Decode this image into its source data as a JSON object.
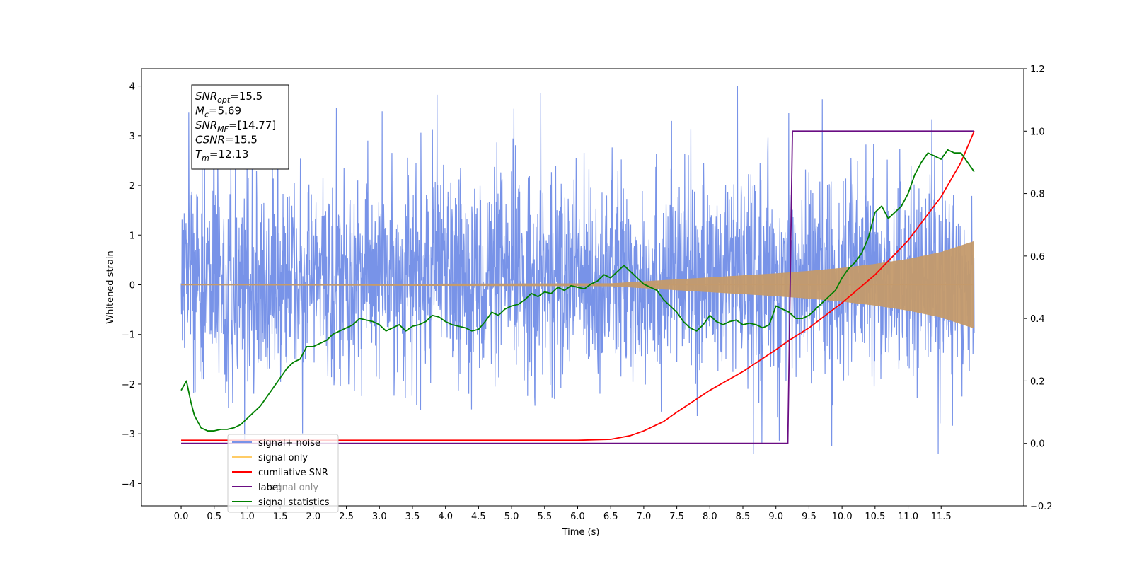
{
  "chart_data": {
    "type": "line",
    "xlabel": "Time (s)",
    "ylabel": "Whitened strain",
    "xlim": [
      -0.6,
      12.75
    ],
    "ylim": [
      -4.45,
      4.35
    ],
    "y2lim": [
      -0.2,
      1.2
    ],
    "x_ticks": [
      0.0,
      0.5,
      1.0,
      1.5,
      2.0,
      2.5,
      3.0,
      3.5,
      4.0,
      4.5,
      5.0,
      5.5,
      6.0,
      6.5,
      7.0,
      7.5,
      8.0,
      8.5,
      9.0,
      9.5,
      10.0,
      10.5,
      11.0,
      11.5
    ],
    "x_tick_labels": [
      "0.0",
      "0.5",
      "1.0",
      "1.5",
      "2.0",
      "2.5",
      "3.0",
      "3.5",
      "4.0",
      "4.5",
      "5.0",
      "5.5",
      "6.0",
      "6.5",
      "7.0",
      "7.5",
      "8.0",
      "8.5",
      "9.0",
      "9.5",
      "10.0",
      "10.5",
      "11.0",
      "11.5"
    ],
    "y_ticks": [
      -4,
      -3,
      -2,
      -1,
      0,
      1,
      2,
      3,
      4
    ],
    "y_tick_labels": [
      "−4",
      "−3",
      "−2",
      "−1",
      "0",
      "1",
      "2",
      "3",
      "4"
    ],
    "y2_ticks": [
      -0.2,
      0.0,
      0.2,
      0.4,
      0.6,
      0.8,
      1.0,
      1.2
    ],
    "y2_tick_labels": [
      "−0.2",
      "0.0",
      "0.2",
      "0.4",
      "0.6",
      "0.8",
      "1.0",
      "1.2"
    ],
    "grid": false,
    "legend_position": "bottom-left",
    "annotation_lines": [
      {
        "name": "SNR",
        "sub": "opt",
        "value": "=15.5"
      },
      {
        "name": "M",
        "sub": "c",
        "value": "=5.69"
      },
      {
        "name": "SNR",
        "sub": "MF",
        "value": "=[14.77]"
      },
      {
        "name": "CSNR",
        "sub": "",
        "value": "=15.5"
      },
      {
        "name": "T",
        "sub": "m",
        "value": "=12.13"
      }
    ],
    "noise_series": {
      "name": "signal+ noise",
      "color": "#7893e8",
      "x_start": 0.0,
      "x_end": 12.0,
      "approx_range": [
        -3.4,
        4.0
      ]
    },
    "series": [
      {
        "name": "signal only",
        "color": "#c49a6c",
        "axis": "left",
        "kind": "chirp_envelope",
        "x": [
          0.0,
          6.5,
          7.0,
          7.5,
          8.0,
          8.5,
          9.0,
          9.5,
          10.0,
          10.5,
          11.0,
          11.5,
          12.0
        ],
        "envelope": [
          0.01,
          0.03,
          0.07,
          0.11,
          0.15,
          0.19,
          0.23,
          0.28,
          0.34,
          0.42,
          0.52,
          0.66,
          0.88
        ]
      },
      {
        "name": "cumilative SNR",
        "color": "#ff0000",
        "axis": "right",
        "x": [
          0.0,
          6.0,
          6.5,
          6.8,
          7.0,
          7.3,
          7.5,
          8.0,
          8.5,
          9.0,
          9.2,
          9.5,
          10.0,
          10.5,
          11.0,
          11.5,
          11.8,
          12.0
        ],
        "y": [
          0.01,
          0.01,
          0.013,
          0.025,
          0.04,
          0.07,
          0.1,
          0.17,
          0.23,
          0.3,
          0.33,
          0.37,
          0.45,
          0.54,
          0.65,
          0.79,
          0.9,
          1.0
        ]
      },
      {
        "name": "label",
        "color": "#6a0d83",
        "axis": "right",
        "x": [
          0.0,
          9.18,
          9.25,
          12.0
        ],
        "y": [
          0.0,
          0.0,
          1.0,
          1.0
        ]
      },
      {
        "name": "signal statistics",
        "color": "#008000",
        "axis": "right",
        "x": [
          0.0,
          0.08,
          0.15,
          0.2,
          0.3,
          0.4,
          0.5,
          0.6,
          0.7,
          0.8,
          0.9,
          1.0,
          1.1,
          1.2,
          1.3,
          1.4,
          1.5,
          1.6,
          1.7,
          1.8,
          1.9,
          2.0,
          2.1,
          2.2,
          2.3,
          2.4,
          2.5,
          2.6,
          2.7,
          2.8,
          2.9,
          3.0,
          3.1,
          3.2,
          3.3,
          3.4,
          3.5,
          3.6,
          3.7,
          3.8,
          3.9,
          4.0,
          4.1,
          4.2,
          4.3,
          4.4,
          4.5,
          4.6,
          4.7,
          4.8,
          4.9,
          5.0,
          5.1,
          5.2,
          5.3,
          5.4,
          5.5,
          5.6,
          5.7,
          5.8,
          5.9,
          6.0,
          6.1,
          6.2,
          6.3,
          6.4,
          6.5,
          6.6,
          6.7,
          6.8,
          6.9,
          7.0,
          7.1,
          7.2,
          7.3,
          7.4,
          7.5,
          7.6,
          7.7,
          7.8,
          7.9,
          8.0,
          8.1,
          8.2,
          8.3,
          8.4,
          8.5,
          8.6,
          8.7,
          8.8,
          8.9,
          9.0,
          9.1,
          9.2,
          9.3,
          9.4,
          9.5,
          9.6,
          9.7,
          9.8,
          9.9,
          10.0,
          10.1,
          10.2,
          10.3,
          10.4,
          10.5,
          10.6,
          10.7,
          10.8,
          10.9,
          11.0,
          11.1,
          11.2,
          11.3,
          11.4,
          11.5,
          11.6,
          11.7,
          11.8,
          11.9,
          12.0
        ],
        "y": [
          0.17,
          0.2,
          0.13,
          0.09,
          0.05,
          0.04,
          0.04,
          0.045,
          0.045,
          0.05,
          0.06,
          0.08,
          0.1,
          0.12,
          0.15,
          0.18,
          0.21,
          0.24,
          0.26,
          0.27,
          0.31,
          0.31,
          0.32,
          0.33,
          0.35,
          0.36,
          0.37,
          0.38,
          0.4,
          0.395,
          0.39,
          0.38,
          0.36,
          0.37,
          0.38,
          0.36,
          0.375,
          0.38,
          0.39,
          0.41,
          0.405,
          0.39,
          0.38,
          0.375,
          0.37,
          0.36,
          0.365,
          0.39,
          0.42,
          0.41,
          0.43,
          0.44,
          0.445,
          0.46,
          0.48,
          0.47,
          0.485,
          0.48,
          0.5,
          0.49,
          0.505,
          0.5,
          0.495,
          0.51,
          0.52,
          0.54,
          0.53,
          0.55,
          0.57,
          0.55,
          0.53,
          0.51,
          0.5,
          0.49,
          0.46,
          0.44,
          0.42,
          0.39,
          0.37,
          0.36,
          0.38,
          0.41,
          0.39,
          0.38,
          0.39,
          0.395,
          0.38,
          0.385,
          0.38,
          0.37,
          0.38,
          0.44,
          0.43,
          0.42,
          0.4,
          0.4,
          0.41,
          0.43,
          0.45,
          0.47,
          0.49,
          0.53,
          0.56,
          0.58,
          0.61,
          0.66,
          0.74,
          0.76,
          0.72,
          0.74,
          0.76,
          0.8,
          0.86,
          0.9,
          0.93,
          0.92,
          0.91,
          0.94,
          0.93,
          0.93,
          0.9,
          0.87
        ]
      }
    ],
    "legend_entries": [
      {
        "name": "signal+ noise",
        "color": "#7893e8"
      },
      {
        "name": "signal only",
        "color": "#ffcc66"
      },
      {
        "name": "cumilative SNR",
        "color": "#ff0000"
      },
      {
        "name": "label",
        "color": "#6a0d83"
      },
      {
        "name": "signal statistics",
        "color": "#008000"
      }
    ],
    "legend_hidden_text": "signal only"
  }
}
